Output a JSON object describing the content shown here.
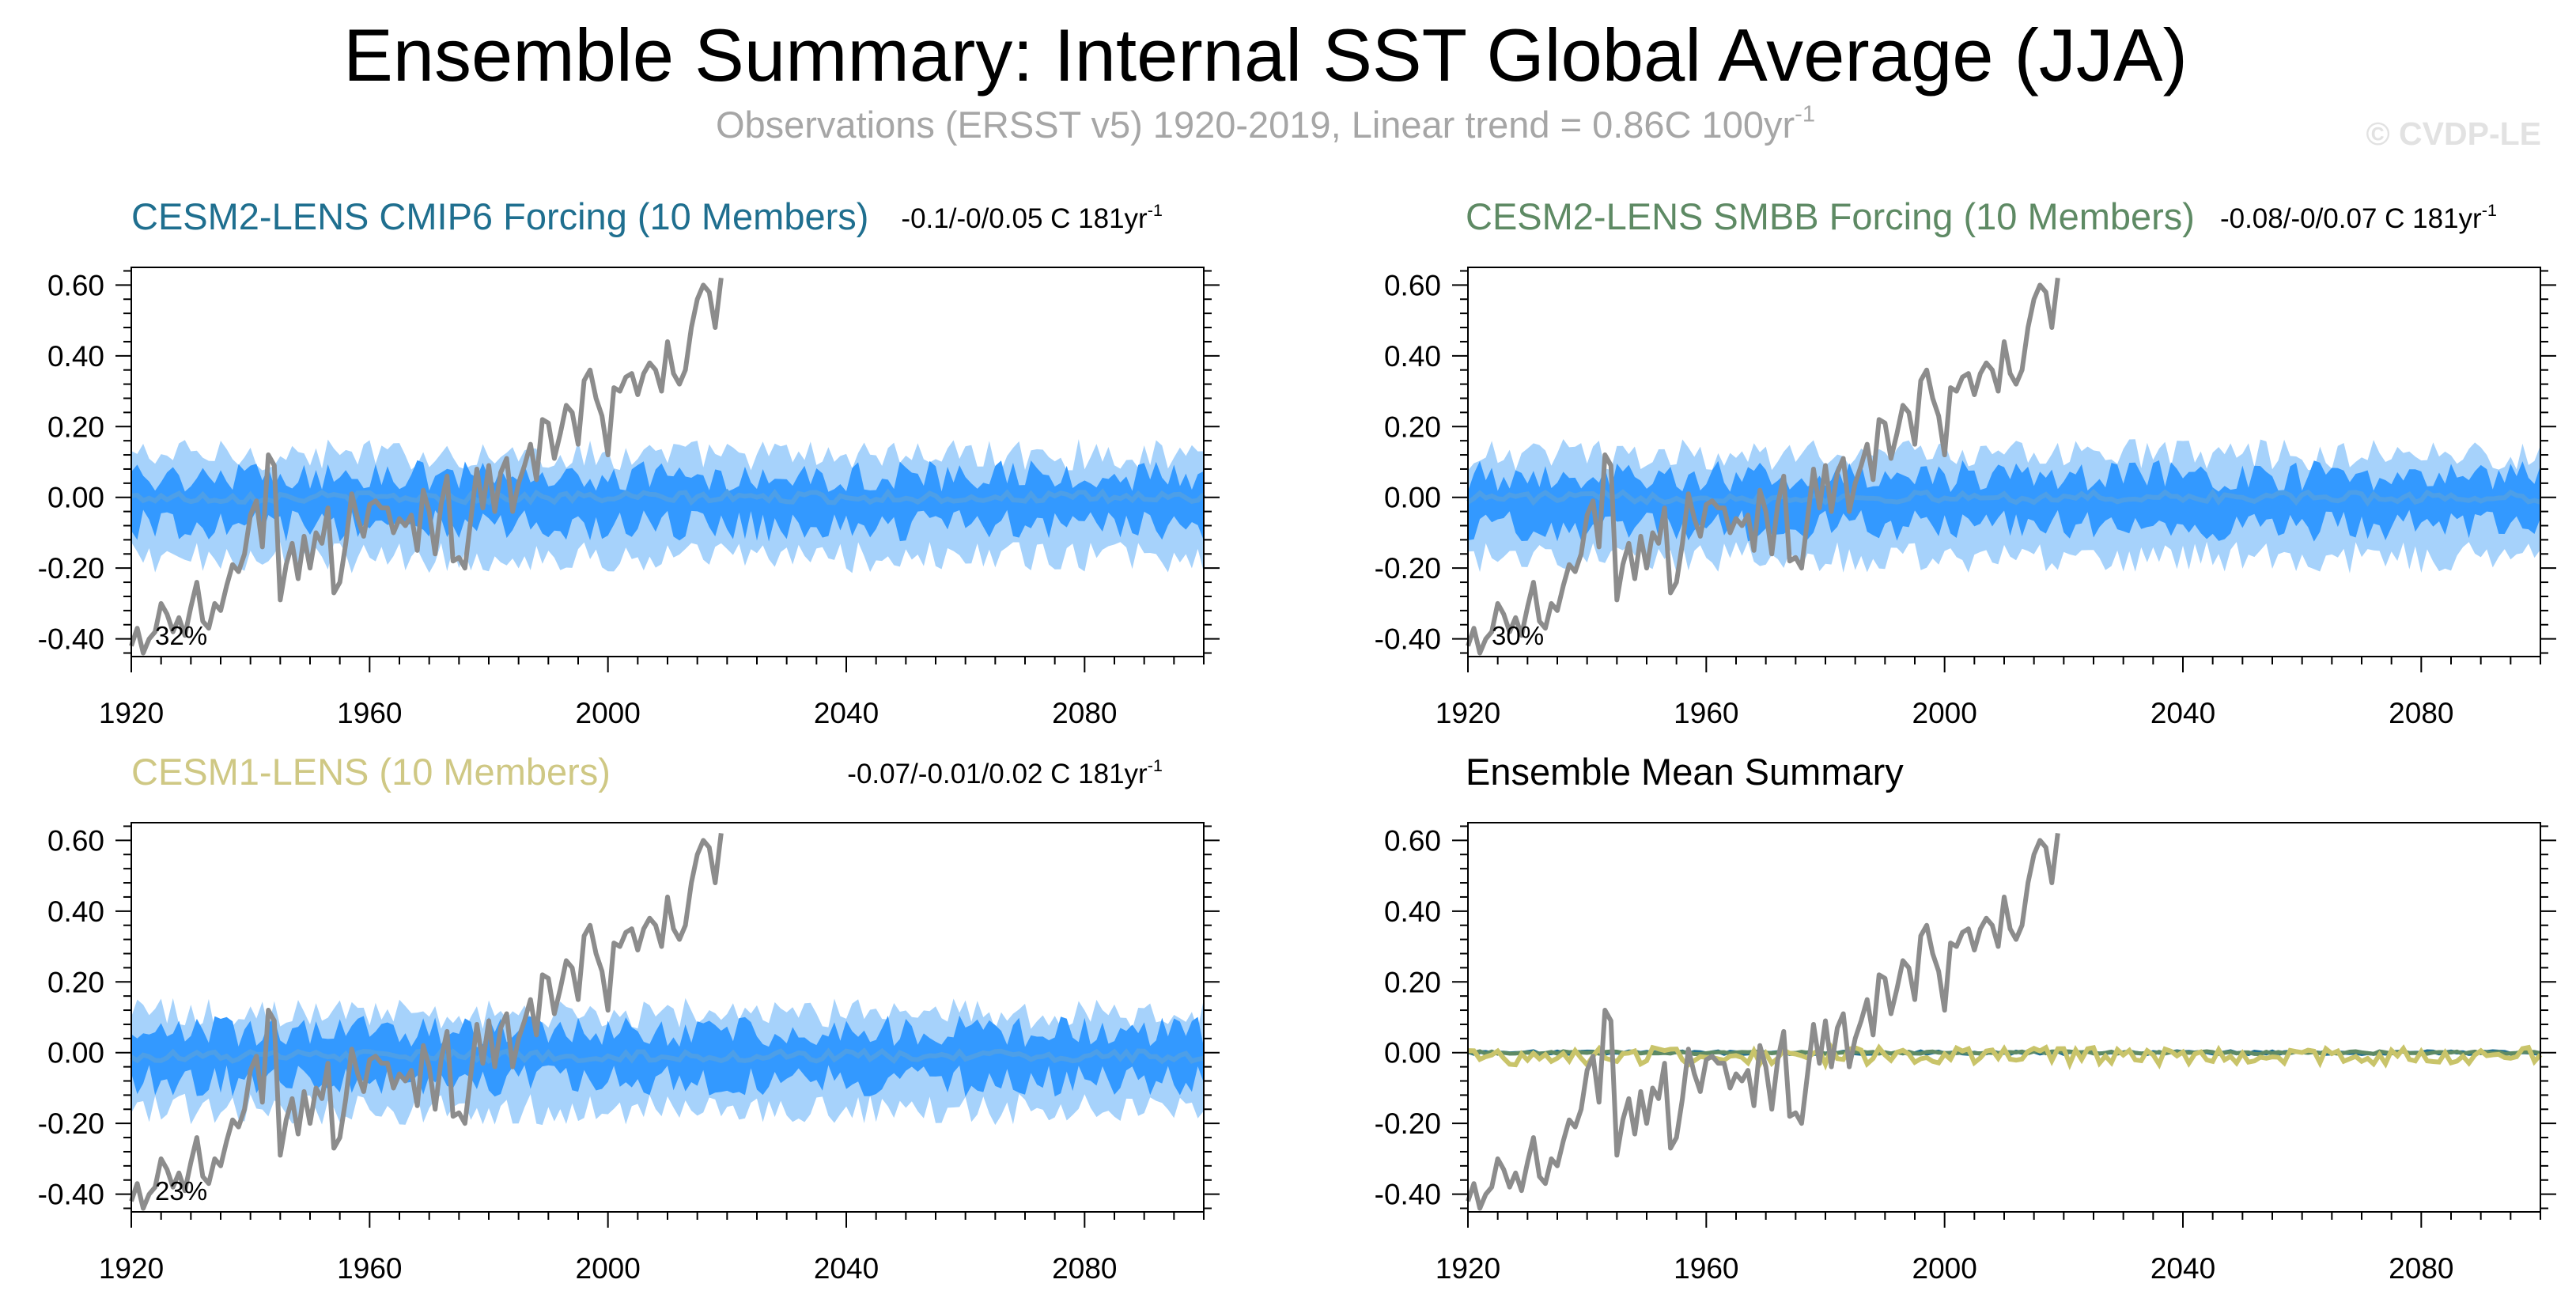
{
  "figure": {
    "title": "Ensemble Summary: Internal SST Global Average (JJA)",
    "subtitle": "Observations (ERSST v5) 1920-2019, Linear trend = 0.86C 100yr",
    "subtitle_exponent": "-1",
    "watermark": "© CVDP-LE"
  },
  "colors": {
    "ensemble_outer": "#a6d2fb",
    "ensemble_inner": "#3399ff",
    "ensemble_mean": "#4d9fe8",
    "observations": "#8c8c8c",
    "title_cmip6": "#1f6f8f",
    "title_smbb": "#5e8a64",
    "title_cesm1": "#cfc884",
    "mean_cesm2": "#1f6f8f",
    "mean_smbb": "#5e8a64",
    "mean_cesm1": "#c9c46a"
  },
  "chart_data": [
    {
      "type": "area",
      "panel": "CESM2-LENS CMIP6 Forcing",
      "title": "CESM2-LENS CMIP6 Forcing (10 Members)",
      "stat": "-0.1/-0/0.05 C 181yr",
      "stat_exponent": "-1",
      "percent_label": "32%",
      "xlim": [
        1920,
        2100
      ],
      "ylim": [
        -0.45,
        0.65
      ],
      "xticks": [
        "1920",
        "1960",
        "2000",
        "2040",
        "2080"
      ],
      "yticks": [
        "0.60",
        "0.40",
        "0.20",
        "0.00",
        "-0.20",
        "-0.40"
      ],
      "series": [
        {
          "role": "envelope-outer",
          "x_range": [
            1920,
            2100
          ],
          "approx_lower": -0.17,
          "approx_upper": 0.12
        },
        {
          "role": "envelope-inner",
          "x_range": [
            1920,
            2100
          ],
          "approx_lower": -0.08,
          "approx_upper": 0.06
        },
        {
          "role": "ensemble-mean",
          "x_range": [
            1920,
            2100
          ],
          "approx_value": 0.0
        }
      ]
    },
    {
      "type": "area",
      "panel": "CESM2-LENS SMBB Forcing",
      "title": "CESM2-LENS SMBB Forcing (10 Members)",
      "stat": "-0.08/-0/0.07 C 181yr",
      "stat_exponent": "-1",
      "percent_label": "30%",
      "xlim": [
        1920,
        2100
      ],
      "ylim": [
        -0.45,
        0.65
      ],
      "xticks": [
        "1920",
        "1960",
        "2000",
        "2040",
        "2080"
      ],
      "yticks": [
        "0.60",
        "0.40",
        "0.20",
        "0.00",
        "-0.20",
        "-0.40"
      ],
      "series": [
        {
          "role": "envelope-outer",
          "x_range": [
            1920,
            2100
          ],
          "approx_lower": -0.17,
          "approx_upper": 0.12
        },
        {
          "role": "envelope-inner",
          "x_range": [
            1920,
            2100
          ],
          "approx_lower": -0.08,
          "approx_upper": 0.06
        },
        {
          "role": "ensemble-mean",
          "x_range": [
            1920,
            2100
          ],
          "approx_value": 0.0
        }
      ]
    },
    {
      "type": "area",
      "panel": "CESM1-LENS",
      "title": "CESM1-LENS (10 Members)",
      "stat": "-0.07/-0.01/0.02 C 181yr",
      "stat_exponent": "-1",
      "percent_label": "23%",
      "xlim": [
        1920,
        2100
      ],
      "ylim": [
        -0.45,
        0.65
      ],
      "xticks": [
        "1920",
        "1960",
        "2000",
        "2040",
        "2080"
      ],
      "yticks": [
        "0.60",
        "0.40",
        "0.20",
        "0.00",
        "-0.20",
        "-0.40"
      ],
      "series": [
        {
          "role": "envelope-outer",
          "x_range": [
            1920,
            2100
          ],
          "approx_lower": -0.16,
          "approx_upper": 0.11
        },
        {
          "role": "envelope-inner",
          "x_range": [
            1920,
            2100
          ],
          "approx_lower": -0.08,
          "approx_upper": 0.06
        },
        {
          "role": "ensemble-mean",
          "x_range": [
            1920,
            2100
          ],
          "approx_value": -0.01
        }
      ]
    },
    {
      "type": "line",
      "panel": "Ensemble Mean Summary",
      "title": "Ensemble Mean Summary",
      "xlim": [
        1920,
        2100
      ],
      "ylim": [
        -0.45,
        0.65
      ],
      "xticks": [
        "1920",
        "1960",
        "2000",
        "2040",
        "2080"
      ],
      "yticks": [
        "0.60",
        "0.40",
        "0.20",
        "0.00",
        "-0.20",
        "-0.40"
      ],
      "series": [
        {
          "role": "ensemble-mean-cesm2-cmip6",
          "x_range": [
            1920,
            2100
          ],
          "approx_value": 0.0
        },
        {
          "role": "ensemble-mean-cesm2-smbb",
          "x_range": [
            1920,
            2100
          ],
          "approx_value": 0.0
        },
        {
          "role": "ensemble-mean-cesm1",
          "x_range": [
            1920,
            2100
          ],
          "approx_value": -0.01
        }
      ]
    }
  ],
  "observations": {
    "x_start": 1920,
    "x_end": 2019,
    "values": [
      -0.42,
      -0.37,
      -0.44,
      -0.4,
      -0.38,
      -0.3,
      -0.33,
      -0.38,
      -0.34,
      -0.39,
      -0.31,
      -0.24,
      -0.35,
      -0.37,
      -0.3,
      -0.32,
      -0.25,
      -0.19,
      -0.21,
      -0.16,
      -0.05,
      -0.01,
      -0.14,
      0.12,
      0.09,
      -0.29,
      -0.19,
      -0.13,
      -0.23,
      -0.11,
      -0.2,
      -0.1,
      -0.13,
      -0.03,
      -0.27,
      -0.24,
      -0.13,
      0.01,
      -0.06,
      -0.11,
      -0.02,
      -0.01,
      -0.03,
      -0.03,
      -0.1,
      -0.06,
      -0.08,
      -0.05,
      -0.15,
      0.02,
      -0.04,
      -0.16,
      -0.02,
      0.06,
      -0.18,
      -0.17,
      -0.2,
      -0.06,
      0.08,
      -0.03,
      0.09,
      -0.04,
      0.07,
      0.11,
      -0.04,
      0.04,
      0.09,
      0.15,
      0.05,
      0.22,
      0.21,
      0.11,
      0.18,
      0.26,
      0.24,
      0.15,
      0.33,
      0.36,
      0.28,
      0.23,
      0.12,
      0.31,
      0.3,
      0.34,
      0.35,
      0.29,
      0.35,
      0.38,
      0.36,
      0.3,
      0.44,
      0.35,
      0.32,
      0.36,
      0.48,
      0.56,
      0.6,
      0.58,
      0.48,
      0.62
    ]
  }
}
